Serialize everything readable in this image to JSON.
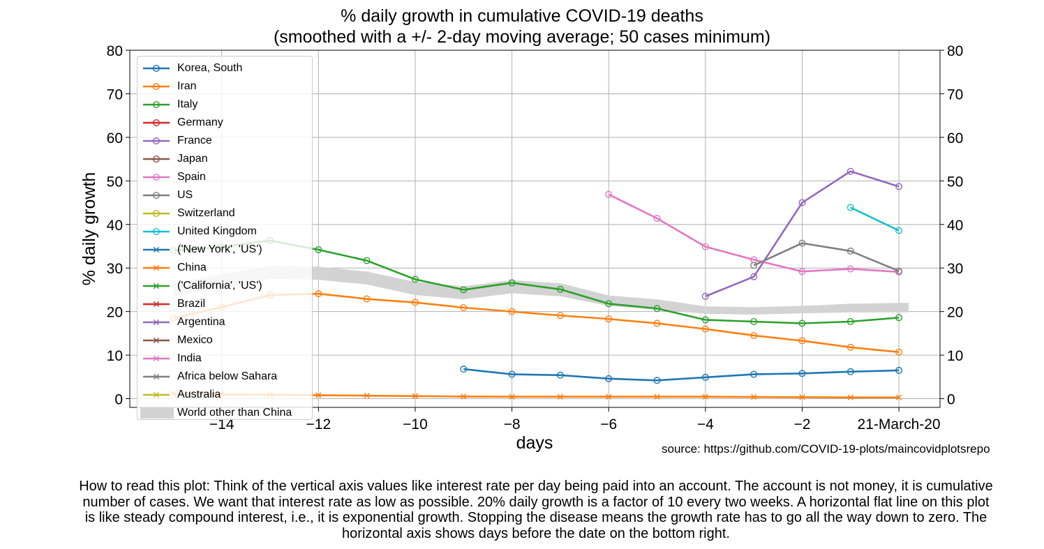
{
  "chart_data": {
    "type": "line",
    "title": "% daily growth in cumulative COVID-19 deaths",
    "subtitle": "(smoothed with a +/- 2-day moving average; 50 cases minimum)",
    "xlabel": "days",
    "ylabel": "% daily growth",
    "xlim": [
      -15.9,
      0.85
    ],
    "ylim": [
      -2,
      80
    ],
    "x_ticks": [
      -14,
      -12,
      -10,
      -8,
      -6,
      -4,
      -2
    ],
    "x_tick_labels": [
      "−14",
      "−12",
      "−10",
      "−8",
      "−6",
      "−4",
      "−2"
    ],
    "x_end_label": "21-March-20",
    "y_ticks": [
      0,
      10,
      20,
      30,
      40,
      50,
      60,
      70,
      80
    ],
    "grid": true,
    "legend_position": "top-left",
    "source": "source: https://github.com/COVID-19-plots/maincovidplotsrepo",
    "band": {
      "name": "World other than China",
      "color": "#d3d3d3",
      "x": [
        -15,
        -14,
        -13,
        -12,
        -11,
        -10,
        -9,
        -8,
        -7,
        -6,
        -5,
        -4,
        -3,
        -2,
        -1,
        0,
        0.2
      ],
      "lower": [
        23.5,
        25.5,
        27.5,
        27.3,
        26.2,
        23.8,
        22.8,
        24.2,
        23.5,
        21.3,
        20.4,
        19.5,
        19.3,
        19.6,
        19.8,
        19.8,
        19.8
      ],
      "upper": [
        26.5,
        28.5,
        30.5,
        30.3,
        29.2,
        26.8,
        25.8,
        27.2,
        26.5,
        23.7,
        22.8,
        21.2,
        21.0,
        21.3,
        21.8,
        22.0,
        22.0
      ]
    },
    "series": [
      {
        "name": "Korea, South",
        "color": "#1f77b4",
        "marker": "o",
        "x": [
          -9,
          -8,
          -7,
          -6,
          -5,
          -4,
          -3,
          -2,
          -1,
          0
        ],
        "y": [
          6.8,
          5.6,
          5.4,
          4.6,
          4.2,
          4.9,
          5.6,
          5.8,
          6.2,
          6.5
        ]
      },
      {
        "name": "Iran",
        "color": "#ff7f0e",
        "marker": "o",
        "x": [
          -15,
          -14,
          -13,
          -12,
          -11,
          -10,
          -9,
          -8,
          -7,
          -6,
          -5,
          -4,
          -3,
          -2,
          -1,
          0
        ],
        "y": [
          18.5,
          21.0,
          23.8,
          24.1,
          22.9,
          22.1,
          20.9,
          20.0,
          19.1,
          18.3,
          17.3,
          16.0,
          14.5,
          13.3,
          11.8,
          10.7
        ]
      },
      {
        "name": "Italy",
        "color": "#2ca02c",
        "marker": "o",
        "x": [
          -15,
          -14,
          -13,
          -12,
          -11,
          -10,
          -9,
          -8,
          -7,
          -6,
          -5,
          -4,
          -3,
          -2,
          -1,
          0
        ],
        "y": [
          34.0,
          34.8,
          36.3,
          34.2,
          31.7,
          27.4,
          25.0,
          26.6,
          25.1,
          21.8,
          20.7,
          18.1,
          17.7,
          17.3,
          17.7,
          18.6
        ]
      },
      {
        "name": "Germany",
        "color": "#d62728",
        "marker": "o",
        "x": [],
        "y": []
      },
      {
        "name": "France",
        "color": "#9467bd",
        "marker": "o",
        "x": [
          -4,
          -3,
          -2,
          -1,
          0
        ],
        "y": [
          23.5,
          28.0,
          45.0,
          52.2,
          48.7
        ]
      },
      {
        "name": "Japan",
        "color": "#8c564b",
        "marker": "o",
        "x": [],
        "y": []
      },
      {
        "name": "Spain",
        "color": "#e377c2",
        "marker": "o",
        "x": [
          -6,
          -5,
          -4,
          -3,
          -2,
          -1,
          0
        ],
        "y": [
          46.9,
          41.4,
          34.9,
          31.9,
          29.2,
          29.8,
          29.1
        ]
      },
      {
        "name": "US",
        "color": "#7f7f7f",
        "marker": "o",
        "x": [
          -3,
          -2,
          -1,
          0
        ],
        "y": [
          30.6,
          35.7,
          33.9,
          29.3
        ]
      },
      {
        "name": "Switzerland",
        "color": "#bcbd22",
        "marker": "o",
        "x": [],
        "y": []
      },
      {
        "name": "United Kingdom",
        "color": "#17becf",
        "marker": "o",
        "x": [
          -1,
          0
        ],
        "y": [
          43.9,
          38.6
        ]
      },
      {
        "name": "('New York', 'US')",
        "color": "#1f77b4",
        "marker": "x",
        "x": [],
        "y": []
      },
      {
        "name": "China",
        "color": "#ff7f0e",
        "marker": "x",
        "x": [
          -15,
          -14,
          -13,
          -12,
          -11,
          -10,
          -9,
          -8,
          -7,
          -6,
          -5,
          -4,
          -3,
          -2,
          -1,
          0
        ],
        "y": [
          1.1,
          1.0,
          0.9,
          0.8,
          0.7,
          0.6,
          0.5,
          0.45,
          0.45,
          0.45,
          0.45,
          0.45,
          0.4,
          0.35,
          0.3,
          0.3
        ]
      },
      {
        "name": "('California', 'US')",
        "color": "#2ca02c",
        "marker": "x",
        "x": [],
        "y": []
      },
      {
        "name": "Brazil",
        "color": "#d62728",
        "marker": "x",
        "x": [],
        "y": []
      },
      {
        "name": "Argentina",
        "color": "#9467bd",
        "marker": "x",
        "x": [],
        "y": []
      },
      {
        "name": "Mexico",
        "color": "#8c564b",
        "marker": "x",
        "x": [],
        "y": []
      },
      {
        "name": "India",
        "color": "#e377c2",
        "marker": "x",
        "x": [],
        "y": []
      },
      {
        "name": "Africa below Sahara",
        "color": "#7f7f7f",
        "marker": "x",
        "x": [],
        "y": []
      },
      {
        "name": "Australia",
        "color": "#bcbd22",
        "marker": "x",
        "x": [],
        "y": []
      }
    ]
  },
  "caption": "How to read this plot: Think of the vertical axis values like interest rate per day being paid into an account. The account is not money, it is cumulative number of cases. We want that interest rate as low as possible.  20% daily growth is a factor of 10 every two weeks. A horizontal flat line on this plot is like steady compound interest, i.e., it is exponential growth. Stopping the disease means the growth rate has to go all the way down to zero. The horizontal axis shows days before the date on the bottom right."
}
